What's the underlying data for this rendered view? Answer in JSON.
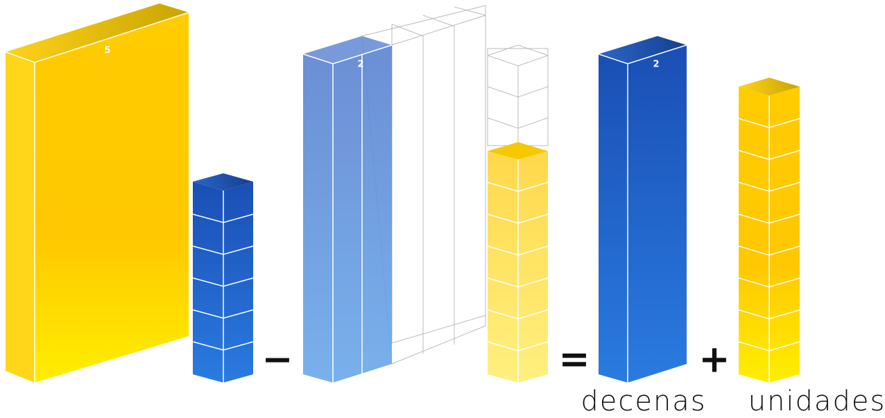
{
  "blocks": [
    {
      "label": "5"
    },
    {
      "label": "2"
    },
    {
      "label": "2"
    }
  ],
  "operators": [
    "−",
    "=",
    "+"
  ],
  "captions": [
    "decenas",
    "unidades"
  ]
}
